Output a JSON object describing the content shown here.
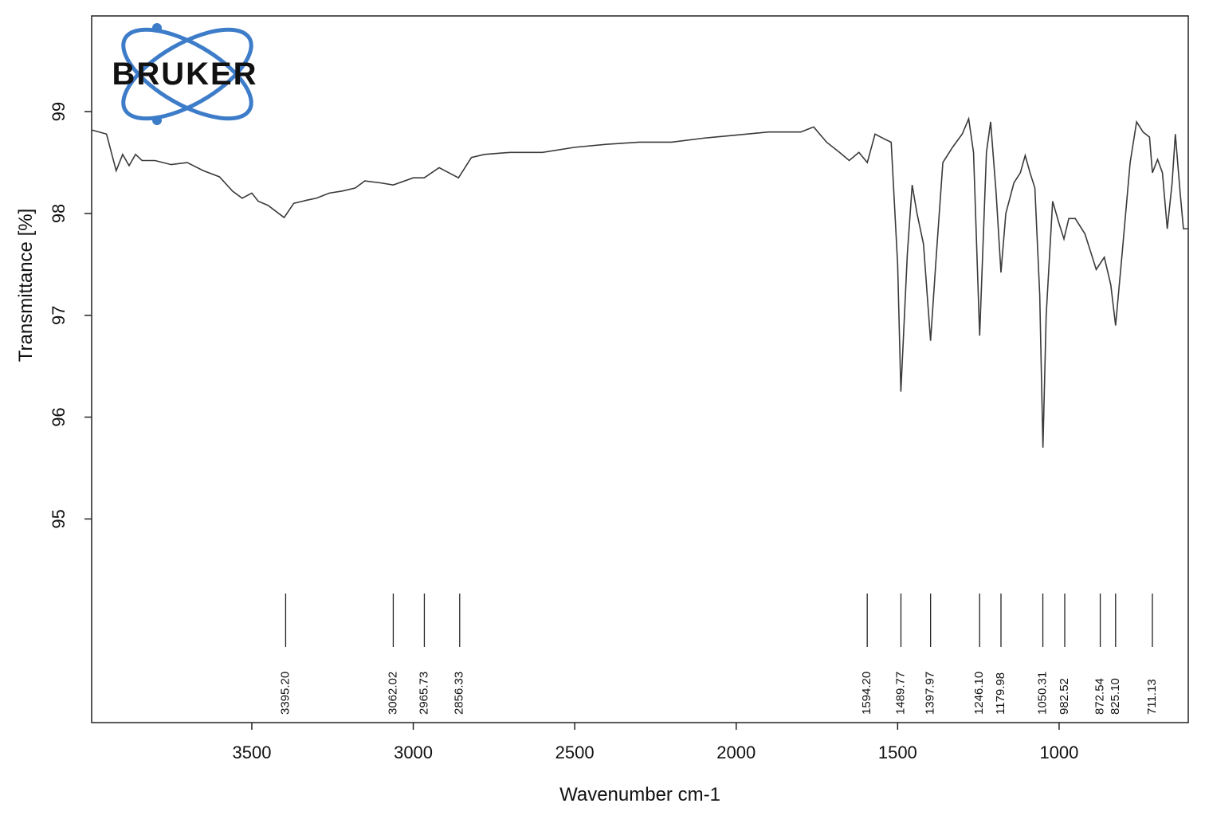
{
  "chart_data": {
    "type": "line",
    "logo": "BRUKER",
    "x_label": "Wavenumber cm-1",
    "y_label": "Transmittance [%]",
    "xlim": [
      3996,
      600
    ],
    "ylim": [
      93.0,
      99.94
    ],
    "xticks": [
      3500,
      3000,
      2500,
      2000,
      1500,
      1000
    ],
    "yticks": [
      95,
      96,
      97,
      98,
      99
    ],
    "series": [
      {
        "color": "#3a3a3a",
        "x": [
          3996,
          3950,
          3920,
          3900,
          3880,
          3860,
          3840,
          3800,
          3750,
          3700,
          3650,
          3600,
          3560,
          3530,
          3500,
          3480,
          3450,
          3400,
          3370,
          3330,
          3300,
          3260,
          3220,
          3180,
          3150,
          3100,
          3062,
          3000,
          2966,
          2920,
          2860,
          2820,
          2780,
          2700,
          2600,
          2500,
          2400,
          2300,
          2200,
          2100,
          2000,
          1900,
          1800,
          1760,
          1720,
          1680,
          1650,
          1620,
          1594,
          1570,
          1540,
          1520,
          1500,
          1490,
          1470,
          1455,
          1440,
          1420,
          1398,
          1380,
          1360,
          1330,
          1300,
          1280,
          1265,
          1246,
          1225,
          1212,
          1195,
          1180,
          1165,
          1140,
          1120,
          1105,
          1090,
          1075,
          1060,
          1050,
          1040,
          1020,
          1000,
          985,
          970,
          950,
          920,
          900,
          885,
          860,
          840,
          825,
          805,
          780,
          760,
          740,
          720,
          711,
          695,
          680,
          665,
          650,
          640,
          625,
          615,
          600
        ],
        "values": [
          98.82,
          98.78,
          98.42,
          98.58,
          98.47,
          98.58,
          98.52,
          98.52,
          98.48,
          98.5,
          98.42,
          98.36,
          98.22,
          98.15,
          98.2,
          98.12,
          98.08,
          97.96,
          98.1,
          98.13,
          98.15,
          98.2,
          98.22,
          98.25,
          98.32,
          98.3,
          98.28,
          98.35,
          98.35,
          98.45,
          98.35,
          98.55,
          98.58,
          98.6,
          98.6,
          98.65,
          98.68,
          98.7,
          98.7,
          98.74,
          98.77,
          98.8,
          98.8,
          98.85,
          98.7,
          98.6,
          98.52,
          98.6,
          98.5,
          98.78,
          98.73,
          98.7,
          97.5,
          96.25,
          97.6,
          98.28,
          98.0,
          97.7,
          96.75,
          97.6,
          98.5,
          98.65,
          98.78,
          98.93,
          98.6,
          96.8,
          98.6,
          98.9,
          98.2,
          97.42,
          98.0,
          98.3,
          98.4,
          98.57,
          98.4,
          98.25,
          97.2,
          95.7,
          97.0,
          98.12,
          97.9,
          97.75,
          97.95,
          97.95,
          97.8,
          97.6,
          97.45,
          97.57,
          97.3,
          96.9,
          97.6,
          98.5,
          98.9,
          98.8,
          98.75,
          98.4,
          98.53,
          98.4,
          97.85,
          98.3,
          98.78,
          98.2,
          97.85,
          97.85
        ]
      }
    ],
    "peaks": [
      {
        "value": 3395.2,
        "label": "3395.20"
      },
      {
        "value": 3062.02,
        "label": "3062.02"
      },
      {
        "value": 2965.73,
        "label": "2965.73"
      },
      {
        "value": 2856.33,
        "label": "2856.33"
      },
      {
        "value": 1594.2,
        "label": "1594.20"
      },
      {
        "value": 1489.77,
        "label": "1489.77"
      },
      {
        "value": 1397.97,
        "label": "1397.97"
      },
      {
        "value": 1246.1,
        "label": "1246.10"
      },
      {
        "value": 1179.98,
        "label": "1179.98"
      },
      {
        "value": 1050.31,
        "label": "1050.31"
      },
      {
        "value": 982.52,
        "label": "982.52"
      },
      {
        "value": 872.54,
        "label": "872.54"
      },
      {
        "value": 825.1,
        "label": "825.10"
      },
      {
        "value": 711.13,
        "label": "711.13"
      }
    ]
  }
}
